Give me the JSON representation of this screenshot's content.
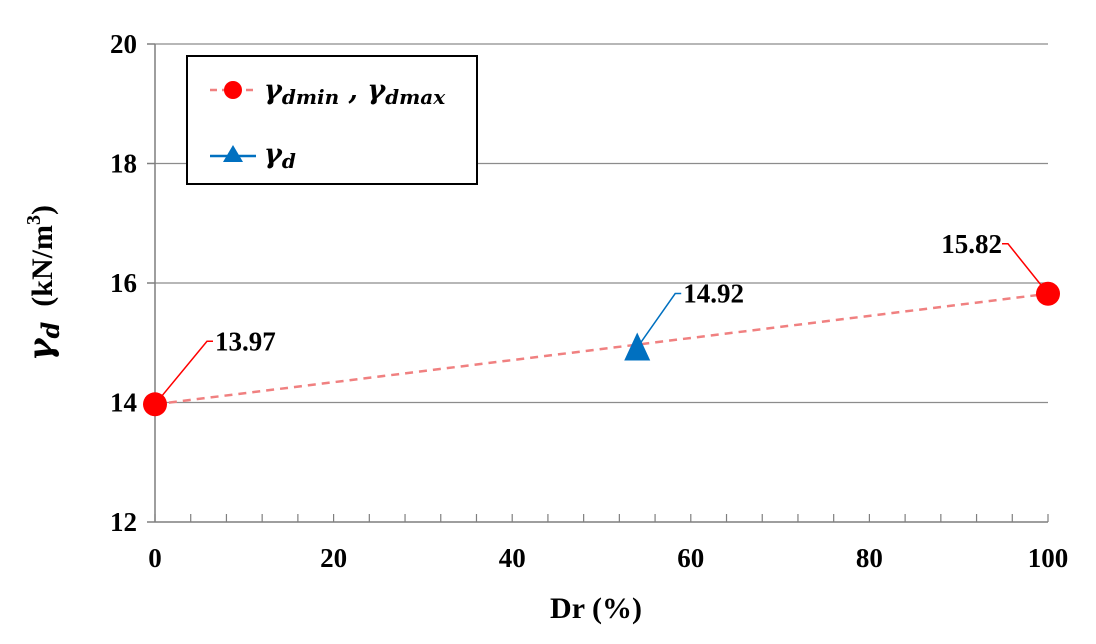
{
  "chart_data": {
    "type": "scatter",
    "xlabel": "Dr (%)",
    "ylabel": {
      "symbol": "γ",
      "subscript": "d",
      "unit": "(kN/m",
      "unit_exp": "3",
      "unit_close": ")"
    },
    "xlim": [
      0,
      100
    ],
    "ylim": [
      12,
      20
    ],
    "x_ticks": [
      0,
      20,
      40,
      60,
      80,
      100
    ],
    "x_tick_labels": [
      "0",
      "20",
      "40",
      "60",
      "80",
      "100"
    ],
    "y_ticks": [
      12,
      14,
      16,
      18,
      20
    ],
    "y_tick_labels": [
      "12",
      "14",
      "16",
      "18",
      "20"
    ],
    "x_minor_step": 4,
    "grid": "horizontal",
    "legend_position": "top-left",
    "series": [
      {
        "name": "γdmin , γdmax",
        "legend": {
          "sym1": "γ",
          "sub1": "dmin",
          "sep": " , ",
          "sym2": "γ",
          "sub2": "dmax"
        },
        "marker": "circle",
        "line": "dashed",
        "color": "#ff0000",
        "line_color": "#f08080",
        "points": [
          {
            "x": 0,
            "y": 13.97,
            "label": "13.97"
          },
          {
            "x": 100,
            "y": 15.82,
            "label": "15.82"
          }
        ]
      },
      {
        "name": "γd",
        "legend": {
          "sym1": "γ",
          "sub1": "d"
        },
        "marker": "triangle",
        "line": "solid",
        "color": "#0070c0",
        "line_color": "#0070c0",
        "points": [
          {
            "x": 54,
            "y": 14.92,
            "label": "14.92"
          }
        ]
      }
    ]
  }
}
